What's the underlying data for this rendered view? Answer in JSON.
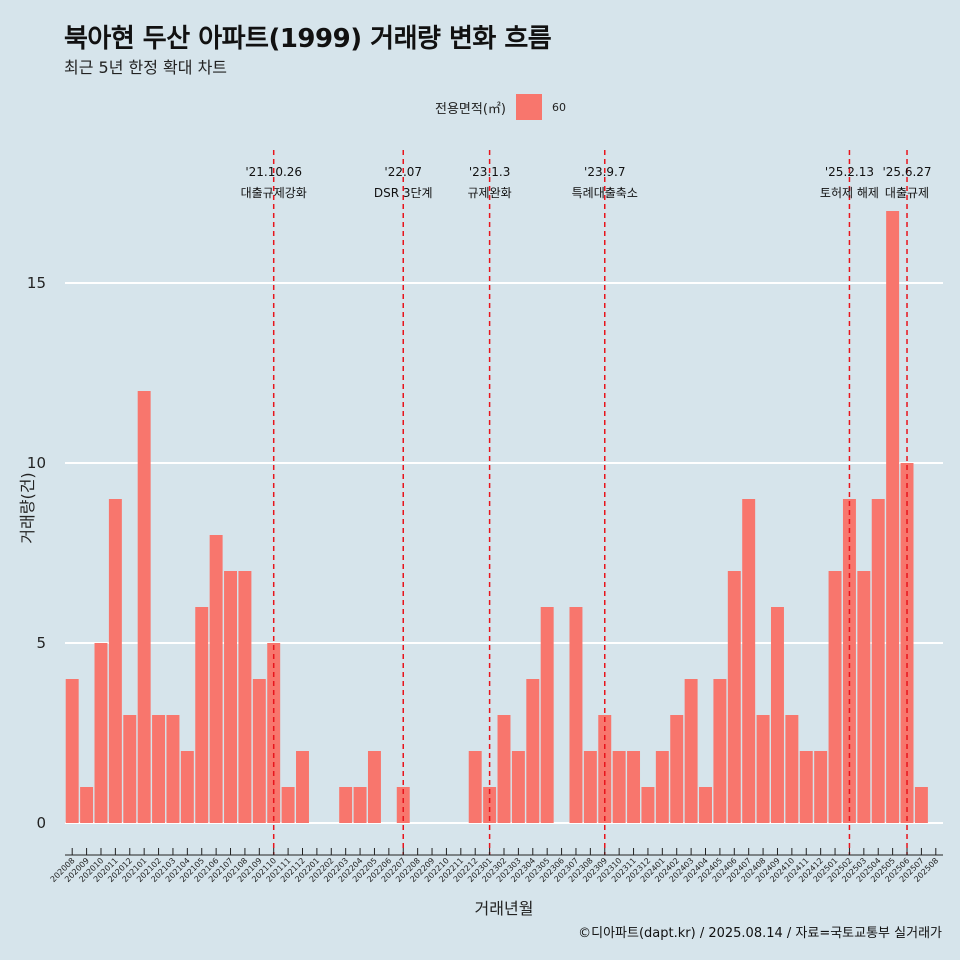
{
  "title": "북아현 두산 아파트(1999) 거래량 변화 흐름",
  "subtitle": "최근 5년 한정 확대 차트",
  "legend": {
    "title": "전용면적(㎡)",
    "label": "60",
    "color": "#f8766d"
  },
  "caption": "©디아파트(dapt.kr) / 2025.08.14 / 자료=국토교통부 실거래가",
  "colors": {
    "background": "#d6e4eb",
    "bar": "#f8766d",
    "event_line": "#e8141c",
    "grid": "#ffffff"
  },
  "chart_data": {
    "type": "bar",
    "xlabel": "거래년월",
    "ylabel": "거래량(건)",
    "ylim": [
      0,
      17
    ],
    "y_ticks": [
      0,
      5,
      10,
      15
    ],
    "grid": true,
    "legend_position": "top",
    "categories": [
      "202008",
      "202009",
      "202010",
      "202011",
      "202012",
      "202101",
      "202102",
      "202103",
      "202104",
      "202105",
      "202106",
      "202107",
      "202108",
      "202109",
      "202110",
      "202111",
      "202112",
      "202201",
      "202202",
      "202203",
      "202204",
      "202205",
      "202206",
      "202207",
      "202208",
      "202209",
      "202210",
      "202211",
      "202212",
      "202301",
      "202302",
      "202303",
      "202304",
      "202305",
      "202306",
      "202307",
      "202308",
      "202309",
      "202310",
      "202311",
      "202312",
      "202401",
      "202402",
      "202403",
      "202404",
      "202405",
      "202406",
      "202407",
      "202408",
      "202409",
      "202410",
      "202411",
      "202412",
      "202501",
      "202502",
      "202503",
      "202504",
      "202505",
      "202506",
      "202507",
      "202508"
    ],
    "series": [
      {
        "name": "60",
        "values": [
          4,
          1,
          5,
          9,
          3,
          12,
          3,
          3,
          2,
          6,
          8,
          7,
          7,
          4,
          5,
          1,
          2,
          0,
          0,
          1,
          1,
          2,
          0,
          1,
          0,
          0,
          0,
          0,
          2,
          1,
          3,
          2,
          4,
          6,
          0,
          6,
          2,
          3,
          2,
          2,
          1,
          2,
          3,
          4,
          1,
          4,
          7,
          9,
          3,
          6,
          3,
          2,
          2,
          7,
          9,
          7,
          9,
          17,
          10,
          1,
          0
        ]
      }
    ],
    "annotations": [
      {
        "date": "202110",
        "label_top": "'21.10.26",
        "label_bottom": "대출규제강화"
      },
      {
        "date": "202207",
        "label_top": "'22.07",
        "label_bottom": "DSR 3단계"
      },
      {
        "date": "202301",
        "label_top": "'23.1.3",
        "label_bottom": "규제완화"
      },
      {
        "date": "202309",
        "label_top": "'23.9.7",
        "label_bottom": "특례대출축소"
      },
      {
        "date": "202502",
        "label_top": "'25.2.13",
        "label_bottom": "토허제 해제"
      },
      {
        "date": "202506",
        "label_top": "'25.6.27",
        "label_bottom": "대출규제"
      }
    ]
  }
}
